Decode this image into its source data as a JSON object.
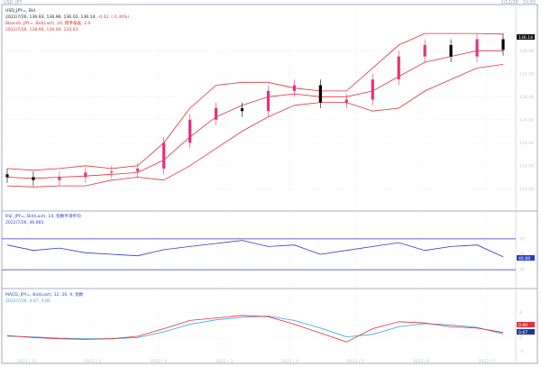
{
  "header": {
    "title": "USD_JPY",
    "info": "1/12/26 · 10:50"
  },
  "panels": {
    "price": {
      "legend1": "USD_JPY=, Bid",
      "legend2_prefix": "2022/7/26, 136.93, 136.96, 136.02, 136.14,",
      "legend2_change": "-0.42, (-0.30%)",
      "legend3": "Bbands, JPY=, Bid(Last), 20, 標準偏差, 2.0",
      "legend4": "2022/7/26, 138.90, 136.00, 133.63",
      "last_price": "136.14",
      "y_ticks": [
        "136.00",
        "132.00",
        "128.00",
        "124.00",
        "120.00",
        "116.00",
        "112.00"
      ]
    },
    "rsi": {
      "legend1": "RSI, JPY=, Bid(Last), 14, 指数平滑平均",
      "legend2": "2022/7/26, 46.883",
      "last_value": "46.88",
      "y_ticks": [
        "70",
        "50",
        "30"
      ]
    },
    "macd": {
      "legend1": "MACD, JPY=, Bid(Last), 12, 26, 9, 指数",
      "legend2": "2022/7/26, 0.67, 0.90",
      "value1": "0.90",
      "value2": "0.67",
      "y_ticks": [
        "4",
        "2",
        "0",
        "-2"
      ]
    },
    "x_axis": [
      "2021 / 11",
      "2022 / 1",
      "2022 / 2",
      "2022 / 3",
      "2022 / 4",
      "2022 / 5",
      "2022 / 6",
      "2022 / 7"
    ]
  },
  "colors": {
    "up": "#e8317a",
    "down": "#000000",
    "bband": "#e0323c",
    "rsi": "#2b3ec0",
    "rsi_band": "#3238b8",
    "macd": "#e0323c",
    "signal": "#3aa0e0",
    "grid": "#d5dbea",
    "axis_text": "#c0c6d2"
  },
  "chart_data": {
    "type": "candlestick",
    "x": [
      "2021/11",
      "2021/12",
      "2022/1",
      "2022/2",
      "2022/3",
      "2022/4",
      "2022/5",
      "2022/6",
      "2022/7"
    ],
    "price_close": [
      114.0,
      113.5,
      114.0,
      114.8,
      115.0,
      115.5,
      120.0,
      124.0,
      126.0,
      125.5,
      129.0,
      130.0,
      127.0,
      127.5,
      131.0,
      135.0,
      137.0,
      135.0,
      138.0,
      136.14
    ],
    "bbands": {
      "upper": [
        115.5,
        115.2,
        115.5,
        116.0,
        115.5,
        116.0,
        120.0,
        126.0,
        130.0,
        130.5,
        130.5,
        129.5,
        129.0,
        129.0,
        133.0,
        137.0,
        139.0,
        139.0,
        139.0,
        138.9
      ],
      "middle": [
        114.0,
        113.8,
        114.0,
        114.2,
        114.5,
        114.8,
        117.0,
        121.0,
        124.5,
        126.5,
        128.0,
        128.5,
        128.0,
        128.0,
        129.0,
        131.5,
        134.0,
        135.0,
        136.0,
        136.0
      ],
      "lower": [
        112.5,
        112.3,
        112.5,
        112.5,
        113.5,
        114.0,
        113.5,
        116.0,
        119.0,
        122.0,
        124.5,
        126.5,
        127.0,
        127.0,
        125.5,
        126.0,
        129.0,
        131.0,
        133.0,
        133.63
      ]
    },
    "rsi": [
      62,
      55,
      58,
      52,
      50,
      48,
      56,
      60,
      64,
      68,
      60,
      62,
      50,
      55,
      60,
      65,
      55,
      60,
      62,
      46.88
    ],
    "macd": {
      "macd": [
        0.4,
        0.1,
        -0.1,
        -0.2,
        -0.1,
        0.3,
        1.5,
        2.8,
        3.2,
        3.6,
        3.4,
        2.2,
        0.8,
        -0.6,
        1.5,
        2.6,
        2.4,
        1.8,
        1.6,
        0.9
      ],
      "signal": [
        0.3,
        0.2,
        0.0,
        -0.1,
        -0.1,
        0.1,
        1.0,
        2.2,
        2.9,
        3.3,
        3.5,
        2.8,
        1.6,
        0.2,
        0.6,
        1.8,
        2.3,
        2.1,
        1.7,
        0.67
      ]
    }
  }
}
